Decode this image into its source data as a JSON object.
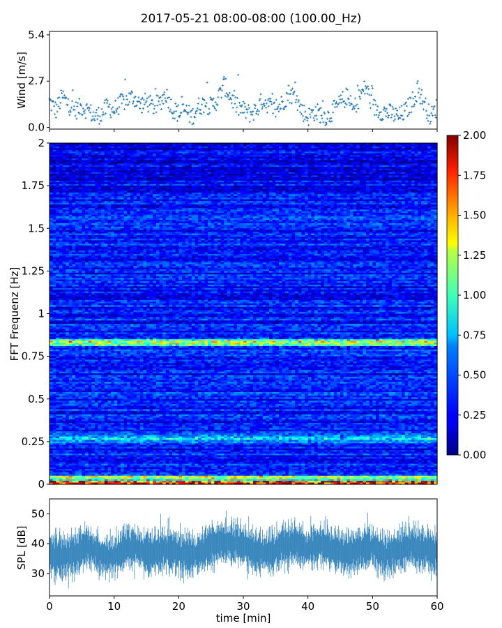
{
  "title": "2017-05-21 08:00-08:00 (100.00_Hz)",
  "chart_data": [
    {
      "type": "scatter",
      "name": "wind-panel",
      "ylabel": "Wind [m/s]",
      "xlim": [
        0,
        60
      ],
      "ylim": [
        -0.1,
        5.6
      ],
      "yticks": [
        0.0,
        2.7,
        5.4
      ],
      "ytick_labels": [
        "0.0",
        "2.7",
        "5.4"
      ],
      "xticks": [
        0,
        10,
        20,
        30,
        40,
        50,
        60
      ],
      "x_interval_min": 0.1,
      "marker": "+",
      "color": "#1f77b4",
      "envelope": {
        "x": [
          0,
          1,
          2,
          3,
          4,
          5,
          6,
          7,
          8,
          9,
          10,
          11,
          12,
          13,
          14,
          15,
          16,
          17,
          18,
          19,
          20,
          21,
          22,
          23,
          24,
          25,
          26,
          27,
          28,
          29,
          30,
          31,
          32,
          33,
          34,
          35,
          36,
          37,
          38,
          39,
          40,
          41,
          42,
          43,
          44,
          45,
          46,
          47,
          48,
          49,
          50,
          51,
          52,
          53,
          54,
          55,
          56,
          57,
          58,
          59,
          60
        ],
        "y": [
          1.5,
          1.0,
          1.8,
          1.3,
          1.0,
          1.2,
          1.0,
          0.6,
          0.8,
          1.2,
          1.0,
          1.4,
          1.6,
          1.8,
          1.3,
          1.5,
          1.2,
          1.4,
          2.0,
          1.1,
          0.8,
          1.0,
          0.6,
          1.2,
          1.4,
          1.2,
          1.6,
          2.5,
          1.8,
          1.2,
          1.0,
          0.8,
          1.0,
          1.6,
          1.3,
          1.0,
          1.4,
          2.0,
          1.8,
          1.0,
          0.6,
          0.9,
          0.8,
          0.6,
          1.0,
          1.4,
          1.8,
          1.0,
          1.8,
          2.4,
          1.2,
          1.0,
          0.9,
          0.8,
          0.6,
          0.9,
          1.4,
          2.2,
          1.4,
          0.6,
          1.2
        ]
      }
    },
    {
      "type": "heatmap",
      "name": "spectrogram",
      "ylabel": "FFT Frequenz [Hz]",
      "xlim": [
        0,
        60
      ],
      "ylim": [
        0,
        2
      ],
      "yticks": [
        0,
        0.25,
        0.5,
        0.75,
        1,
        1.25,
        1.5,
        1.75,
        2
      ],
      "ytick_labels": [
        "0",
        "0.25",
        "0.5",
        "0.75",
        "1",
        "1.25",
        "1.5",
        "1.75",
        "2"
      ],
      "colormap": "jet",
      "colorbar": {
        "vmin": 0.0,
        "vmax": 2.0,
        "ticks": [
          0.0,
          0.25,
          0.5,
          0.75,
          1.0,
          1.25,
          1.5,
          1.75,
          2.0
        ],
        "tick_labels": [
          "0.00",
          "0.25",
          "0.50",
          "0.75",
          "1.00",
          "1.25",
          "1.50",
          "1.75",
          "2.00"
        ]
      },
      "typical_amplitude": 0.3,
      "band_peaks": [
        {
          "freq": 0.01,
          "amplitude": 1.6
        },
        {
          "freq": 0.04,
          "amplitude": 0.9
        },
        {
          "freq": 0.83,
          "amplitude": 0.85
        },
        {
          "freq": 0.27,
          "amplitude": 0.5
        }
      ]
    },
    {
      "type": "area",
      "name": "spl-panel",
      "ylabel": "SPL [dB]",
      "xlabel": "time [min]",
      "xlim": [
        0,
        60
      ],
      "ylim": [
        22.5,
        55
      ],
      "yticks": [
        30,
        40,
        50
      ],
      "ytick_labels": [
        "30",
        "40",
        "50"
      ],
      "xticks": [
        0,
        10,
        20,
        30,
        40,
        50,
        60
      ],
      "xtick_labels": [
        "0",
        "10",
        "20",
        "30",
        "40",
        "50",
        "60"
      ],
      "color": "#1f77b4",
      "center": {
        "x": [
          0,
          2,
          4,
          6,
          8,
          10,
          12,
          14,
          16,
          18,
          20,
          22,
          24,
          26,
          28,
          30,
          32,
          34,
          36,
          38,
          40,
          42,
          44,
          46,
          48,
          50,
          52,
          54,
          56,
          58,
          60
        ],
        "y": [
          36,
          36,
          37,
          39,
          36,
          36,
          39,
          38,
          37,
          38,
          37,
          36,
          38,
          40,
          41,
          39,
          37,
          37,
          39,
          40,
          38,
          40,
          38,
          37,
          38,
          39,
          36,
          38,
          39,
          38,
          37
        ]
      },
      "spread": 8
    }
  ]
}
